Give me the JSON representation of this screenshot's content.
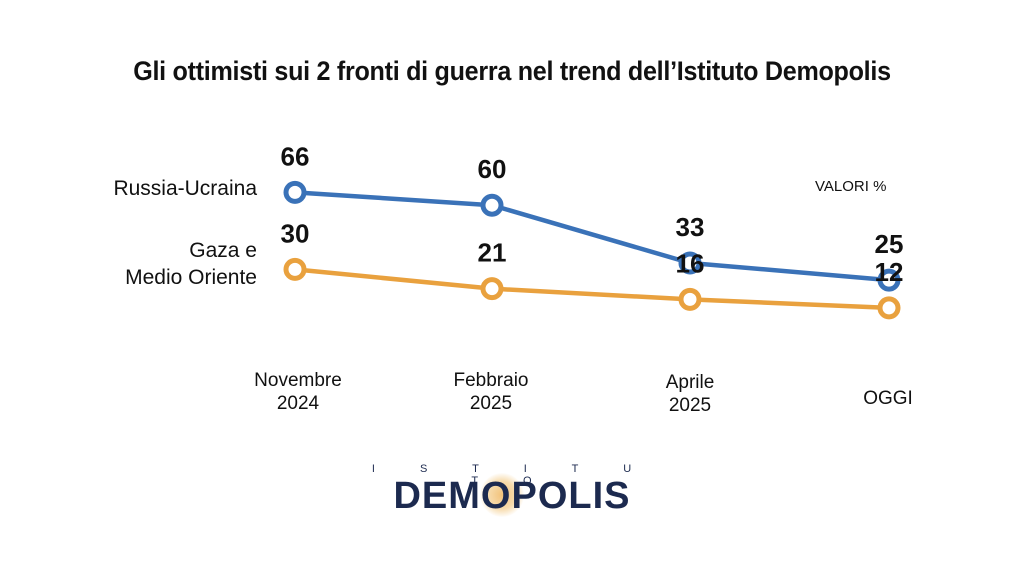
{
  "chart_data": {
    "type": "line",
    "title": "Gli ottimisti sui 2 fronti di guerra nel trend dell’Istituto Demopolis",
    "units_note": "VALORI %",
    "categories": [
      [
        "Novembre",
        "2024"
      ],
      [
        "Febbraio",
        "2025"
      ],
      [
        "Aprile",
        "2025"
      ],
      [
        "OGGI"
      ]
    ],
    "series": [
      {
        "name": "Russia-Ucraina",
        "name_lines": [
          "Russia-Ucraina"
        ],
        "color": "#3a72b8",
        "values": [
          66,
          60,
          33,
          25
        ]
      },
      {
        "name": "Gaza e Medio Oriente",
        "name_lines": [
          "Gaza e",
          "Medio Oriente"
        ],
        "color": "#e9a13e",
        "values": [
          30,
          21,
          16,
          12
        ]
      }
    ],
    "grid": false,
    "legend": "left-inline"
  },
  "logo": {
    "top": "I S T I T U T O",
    "main": "DEMOPOLIS"
  }
}
